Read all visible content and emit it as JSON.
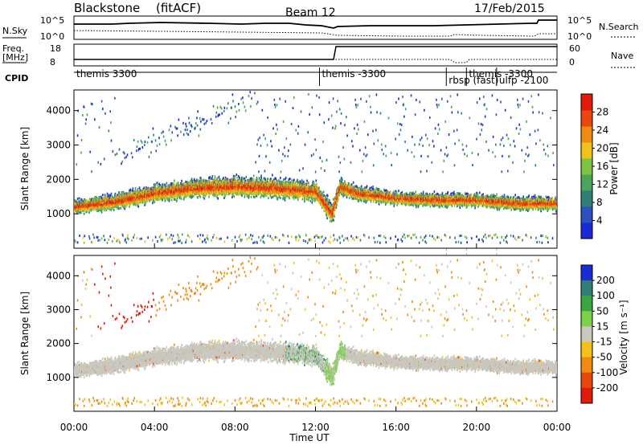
{
  "header": {
    "radar": "Blackstone",
    "mode": "(fitACF)",
    "beam": "Beam 12",
    "date": "17/Feb/2015"
  },
  "status": {
    "nsky_label": "N.Sky",
    "nsearch_label": "N.Search",
    "freq_label_1": "Freq.",
    "freq_label_2": "[MHz]",
    "nave_label": "Nave",
    "cpid_label": "CPID",
    "nsky_ticks": [
      "10^5",
      "10^0"
    ],
    "nsearch_ticks": [
      "10^5",
      "10^0"
    ],
    "freq_ticks": [
      "18",
      "8"
    ],
    "nave_ticks": [
      "60",
      "0"
    ],
    "cpid_entries": [
      {
        "label": "themis 3300",
        "t": 0.0
      },
      {
        "label": "themis -3300",
        "t": 12.2
      },
      {
        "label": "rbsp (fast)",
        "t": 18.5
      },
      {
        "label": "themis -3300",
        "t": 19.5
      },
      {
        "label": "ulfp -2100",
        "t": 21.0
      }
    ]
  },
  "chart_data": [
    {
      "type": "heatmap",
      "name": "power",
      "xlabel": "Time UT",
      "ylabel": "Slant Range [km]",
      "xlim": [
        0,
        24
      ],
      "ylim": [
        0,
        4600
      ],
      "yticks": [
        1000,
        2000,
        3000,
        4000
      ],
      "colorbar": {
        "label": "Power [dB]",
        "ticks": [
          4,
          8,
          12,
          16,
          20,
          24,
          28
        ],
        "range": [
          0,
          32
        ],
        "colors": [
          "#1a2bd6",
          "#2d4fbf",
          "#2f7f77",
          "#4aa55a",
          "#7cc444",
          "#f0c21e",
          "#f08a12",
          "#e8470e",
          "#e01b0b"
        ]
      },
      "bands": [
        {
          "t": [
            0.0,
            2.0,
            4.0,
            6.0,
            8.0,
            10.0,
            12.0,
            12.8,
            13.2,
            14.0,
            16.0,
            18.0,
            20.0,
            22.0,
            24.0
          ],
          "center": [
            1200,
            1350,
            1600,
            1750,
            1800,
            1750,
            1650,
            1000,
            1800,
            1600,
            1450,
            1400,
            1400,
            1300,
            1300
          ],
          "width": [
            450,
            550,
            600,
            650,
            700,
            700,
            650,
            700,
            550,
            500,
            450,
            450,
            450,
            450,
            450
          ]
        }
      ]
    },
    {
      "type": "heatmap",
      "name": "velocity",
      "xlabel": "Time UT",
      "ylabel": "Slant Range [km]",
      "xlim": [
        0,
        24
      ],
      "ylim": [
        0,
        4600
      ],
      "yticks": [
        1000,
        2000,
        3000,
        4000
      ],
      "xticks": [
        "00:00",
        "04:00",
        "08:00",
        "12:00",
        "16:00",
        "20:00",
        "00:00"
      ],
      "colorbar": {
        "label": "Velocity [m s⁻¹]",
        "ticks": [
          "200",
          "100",
          "50",
          "15",
          "-15",
          "-50",
          "-100",
          "-200"
        ],
        "colors": [
          "#1a2bd6",
          "#2f7f77",
          "#3aa640",
          "#7cd04a",
          "#c8c8c0",
          "#f2c21a",
          "#f08a12",
          "#e8470e",
          "#e01b0b"
        ]
      }
    }
  ]
}
